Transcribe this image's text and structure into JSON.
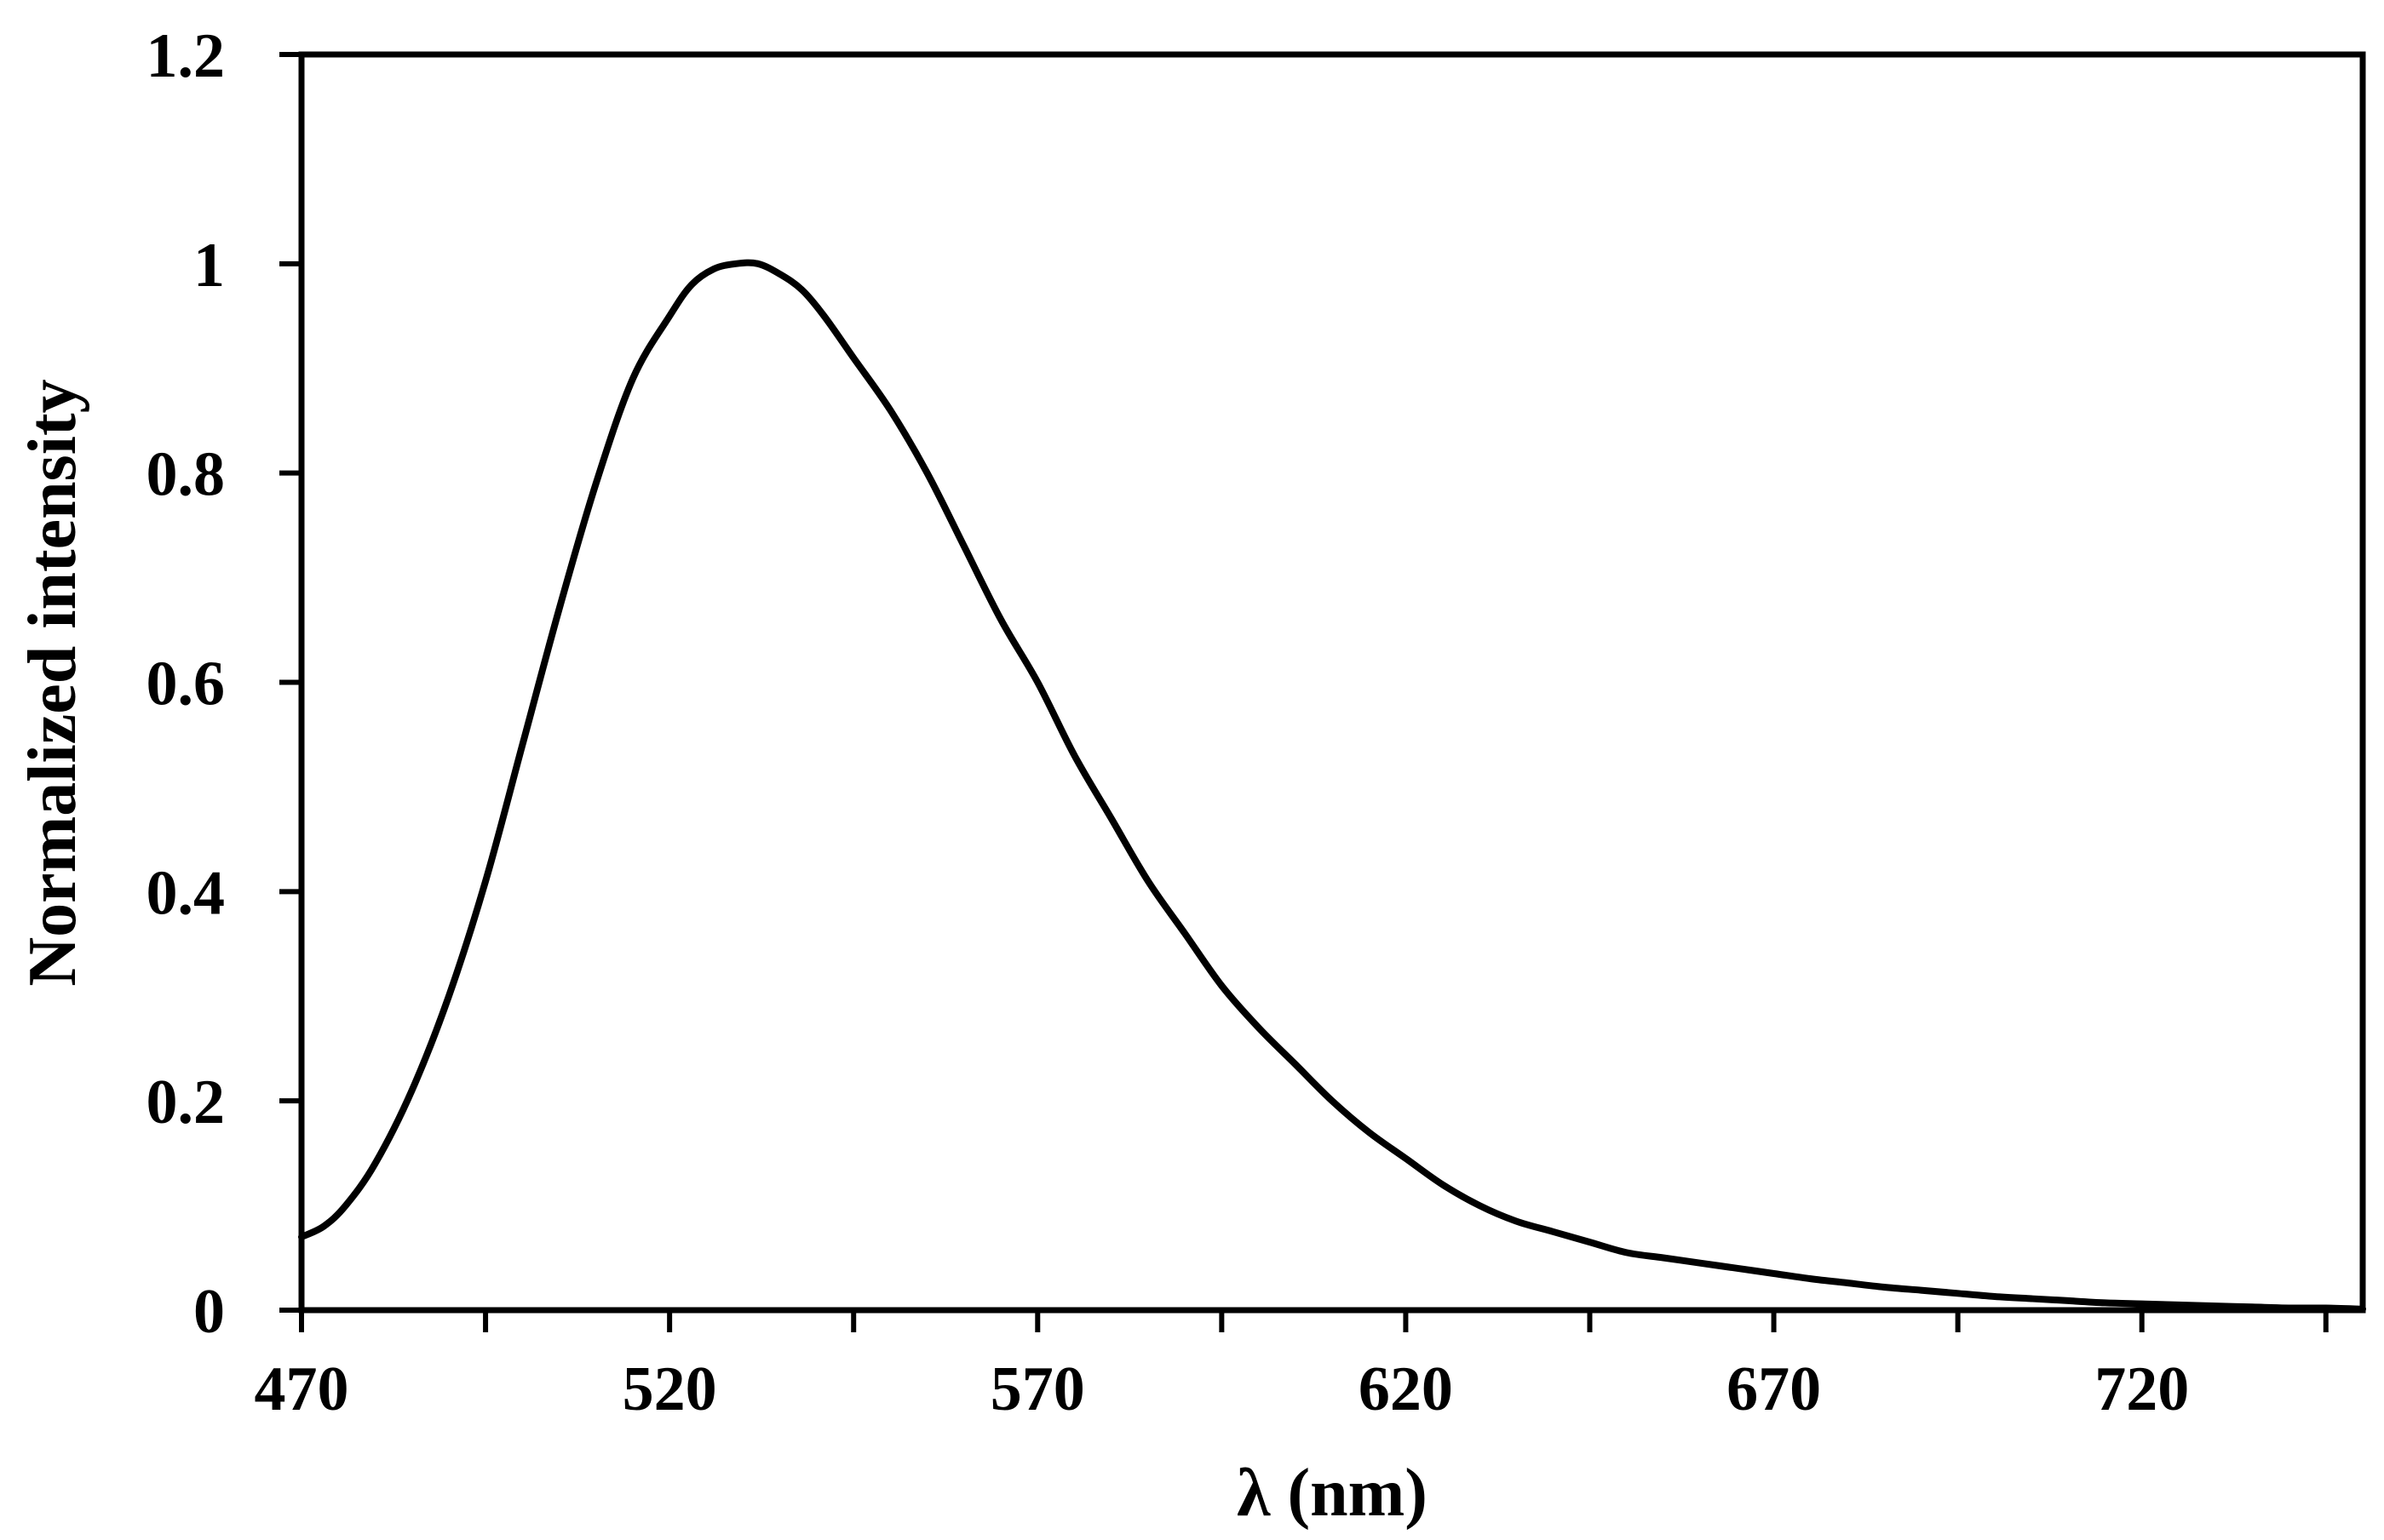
{
  "chart_data": {
    "type": "line",
    "title": "",
    "xlabel": "λ (nm)",
    "ylabel": "Normalized intensity",
    "xlim": [
      470,
      750
    ],
    "ylim": [
      0,
      1.2
    ],
    "x_ticks": [
      470,
      520,
      570,
      620,
      670,
      720
    ],
    "x_minor_ticks": [
      495,
      545,
      595,
      645,
      695,
      745
    ],
    "y_ticks": [
      0,
      0.2,
      0.4,
      0.6,
      0.8,
      1,
      1.2
    ],
    "y_tick_labels": [
      "0",
      "0.2",
      "0.4",
      "0.6",
      "0.8",
      "1",
      "1.2"
    ],
    "grid": false,
    "line_color": "#000000",
    "series": [
      {
        "x": [
          470,
          473,
          476,
          480,
          485,
          490,
          495,
          500,
          505,
          510,
          515,
          520,
          523,
          526,
          529,
          532,
          535,
          538,
          541,
          545,
          550,
          555,
          560,
          565,
          570,
          575,
          580,
          585,
          590,
          595,
          600,
          605,
          610,
          615,
          620,
          625,
          630,
          635,
          640,
          645,
          650,
          655,
          660,
          665,
          670,
          675,
          680,
          685,
          690,
          695,
          700,
          705,
          710,
          715,
          720,
          725,
          730,
          735,
          740,
          745,
          750
        ],
        "y": [
          0.07,
          0.08,
          0.1,
          0.14,
          0.21,
          0.3,
          0.41,
          0.54,
          0.67,
          0.79,
          0.89,
          0.95,
          0.98,
          0.995,
          1.0,
          1.0,
          0.99,
          0.975,
          0.95,
          0.91,
          0.86,
          0.8,
          0.73,
          0.66,
          0.6,
          0.53,
          0.47,
          0.41,
          0.36,
          0.31,
          0.27,
          0.235,
          0.2,
          0.17,
          0.145,
          0.12,
          0.1,
          0.085,
          0.075,
          0.065,
          0.055,
          0.05,
          0.045,
          0.04,
          0.035,
          0.03,
          0.026,
          0.022,
          0.019,
          0.016,
          0.013,
          0.011,
          0.009,
          0.007,
          0.006,
          0.005,
          0.004,
          0.003,
          0.002,
          0.002,
          0.001
        ]
      }
    ]
  }
}
